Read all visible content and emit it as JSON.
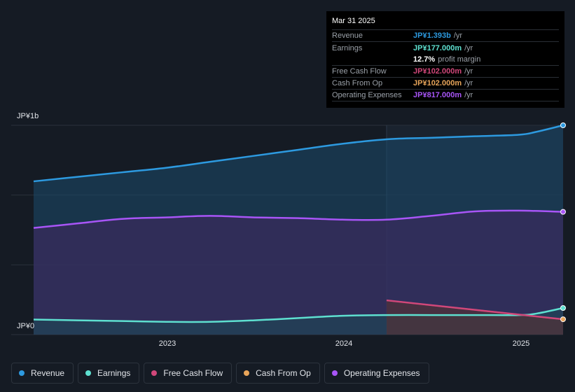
{
  "chart_data": {
    "type": "area",
    "y_axis": {
      "unit": "JP¥",
      "ylim": [
        0,
        1.393
      ],
      "tick_labels": [
        "JP¥1b",
        "JP¥0"
      ]
    },
    "x_axis": {
      "tick_labels": [
        "2023",
        "2024",
        "2025"
      ],
      "xlim": [
        2022.25,
        2025.25
      ]
    },
    "highlight_start": 2024.25,
    "series": [
      {
        "name": "Revenue",
        "color": "#2d9ae0",
        "points": [
          [
            2022.25,
            1.02
          ],
          [
            2022.5,
            1.05
          ],
          [
            2022.75,
            1.08
          ],
          [
            2023.0,
            1.11
          ],
          [
            2023.25,
            1.15
          ],
          [
            2023.5,
            1.19
          ],
          [
            2023.75,
            1.23
          ],
          [
            2024.0,
            1.27
          ],
          [
            2024.25,
            1.3
          ],
          [
            2024.5,
            1.31
          ],
          [
            2024.75,
            1.32
          ],
          [
            2025.0,
            1.33
          ],
          [
            2025.1,
            1.35
          ],
          [
            2025.25,
            1.393
          ]
        ]
      },
      {
        "name": "Operating Expenses",
        "color": "#a855f7",
        "points": [
          [
            2022.25,
            0.71
          ],
          [
            2022.5,
            0.74
          ],
          [
            2022.75,
            0.77
          ],
          [
            2023.0,
            0.78
          ],
          [
            2023.25,
            0.79
          ],
          [
            2023.5,
            0.78
          ],
          [
            2023.75,
            0.775
          ],
          [
            2024.0,
            0.765
          ],
          [
            2024.25,
            0.765
          ],
          [
            2024.5,
            0.79
          ],
          [
            2024.75,
            0.82
          ],
          [
            2025.0,
            0.825
          ],
          [
            2025.25,
            0.817
          ]
        ]
      },
      {
        "name": "Earnings",
        "color": "#5ee0d0",
        "points": [
          [
            2022.25,
            0.1
          ],
          [
            2022.5,
            0.095
          ],
          [
            2022.75,
            0.09
          ],
          [
            2023.0,
            0.085
          ],
          [
            2023.25,
            0.085
          ],
          [
            2023.5,
            0.095
          ],
          [
            2023.75,
            0.11
          ],
          [
            2024.0,
            0.125
          ],
          [
            2024.25,
            0.13
          ],
          [
            2024.5,
            0.13
          ],
          [
            2024.75,
            0.13
          ],
          [
            2025.0,
            0.13
          ],
          [
            2025.1,
            0.14
          ],
          [
            2025.25,
            0.177
          ]
        ]
      },
      {
        "name": "Cash From Op",
        "color": "#e8a55a",
        "points": [
          [
            2024.25,
            0.228
          ],
          [
            2025.25,
            0.102
          ]
        ]
      },
      {
        "name": "Free Cash Flow",
        "color": "#d1477a",
        "points": [
          [
            2024.25,
            0.228
          ],
          [
            2025.25,
            0.102
          ]
        ]
      }
    ]
  },
  "tooltip": {
    "date": "Mar 31 2025",
    "rows": [
      {
        "label": "Revenue",
        "value": "JP¥1.393b",
        "unit": "/yr",
        "color": "#2d9ae0"
      },
      {
        "label": "Earnings",
        "value": "JP¥177.000m",
        "unit": "/yr",
        "color": "#5ee0d0"
      },
      {
        "label": "",
        "value": "12.7%",
        "unit": "profit margin",
        "color": "#ffffff"
      },
      {
        "label": "Free Cash Flow",
        "value": "JP¥102.000m",
        "unit": "/yr",
        "color": "#d1477a"
      },
      {
        "label": "Cash From Op",
        "value": "JP¥102.000m",
        "unit": "/yr",
        "color": "#e8a55a"
      },
      {
        "label": "Operating Expenses",
        "value": "JP¥817.000m",
        "unit": "/yr",
        "color": "#a855f7"
      }
    ]
  },
  "legend": [
    {
      "label": "Revenue",
      "color": "#2d9ae0"
    },
    {
      "label": "Earnings",
      "color": "#5ee0d0"
    },
    {
      "label": "Free Cash Flow",
      "color": "#d1477a"
    },
    {
      "label": "Cash From Op",
      "color": "#e8a55a"
    },
    {
      "label": "Operating Expenses",
      "color": "#a855f7"
    }
  ]
}
